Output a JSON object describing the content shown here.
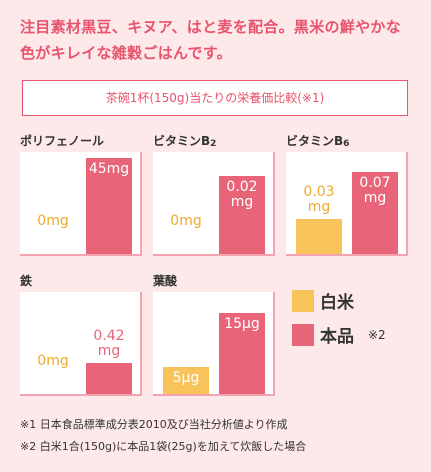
{
  "headline": "注目素材黒豆、キヌア、はと麦を配合。黒米の鮮やかな色がキレイな雑穀ごはんです。",
  "caption": "茶碗1杯(150g)当たりの栄養価比較(※1)",
  "legend": {
    "rice": "白米",
    "product": "本品",
    "product_note": "※2",
    "rice_color": "#f8c35b",
    "product_color": "#e86478"
  },
  "chart_data": [
    {
      "type": "bar",
      "title": "ポリフェノール",
      "title_main": "ポリフェノール",
      "title_sub": "",
      "categories": [
        "白米",
        "本品"
      ],
      "values": [
        0,
        45
      ],
      "unit": "mg",
      "value_labels": [
        "0mg",
        "45mg"
      ],
      "ylim": [
        0,
        48
      ]
    },
    {
      "type": "bar",
      "title": "ビタミンB2",
      "title_main": "ビタミンB",
      "title_sub": "2",
      "categories": [
        "白米",
        "本品"
      ],
      "values": [
        0,
        0.02
      ],
      "unit": "mg",
      "value_labels": [
        "0mg",
        "0.02\nmg"
      ],
      "ylim": [
        0,
        0.026
      ]
    },
    {
      "type": "bar",
      "title": "ビタミンB6",
      "title_main": "ビタミンB",
      "title_sub": "6",
      "categories": [
        "白米",
        "本品"
      ],
      "values": [
        0.03,
        0.07
      ],
      "unit": "mg",
      "value_labels": [
        "0.03\nmg",
        "0.07\nmg"
      ],
      "ylim": [
        0,
        0.087
      ]
    },
    {
      "type": "bar",
      "title": "鉄",
      "title_main": "鉄",
      "title_sub": "",
      "categories": [
        "白米",
        "本品"
      ],
      "values": [
        0,
        0.42
      ],
      "unit": "mg",
      "value_labels": [
        "0mg",
        "0.42\nmg"
      ],
      "ylim": [
        0,
        1.4
      ]
    },
    {
      "type": "bar",
      "title": "葉酸",
      "title_main": "葉酸",
      "title_sub": "",
      "categories": [
        "白米",
        "本品"
      ],
      "values": [
        5,
        15
      ],
      "unit": "μg",
      "value_labels": [
        "5μg",
        "15μg"
      ],
      "ylim": [
        0,
        19
      ]
    }
  ],
  "footnotes": [
    "※1 日本食品標準成分表2010及び当社分析値より作成",
    "※2 白米1合(150g)に本品1袋(25g)を加えて炊飯した場合"
  ]
}
